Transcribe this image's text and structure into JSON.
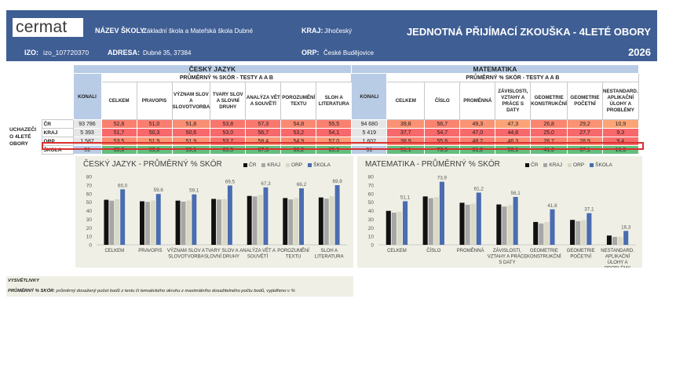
{
  "header": {
    "logo": "cermat",
    "school_label": "NÁZEV ŠKOLY:",
    "school_value": "Základní škola a Mateřská škola Dubné",
    "region_label": "KRAJ:",
    "region_value": "Jihočeský",
    "izo_label": "IZO:",
    "izo_value": "izo_107720370",
    "address_label": "ADRESA:",
    "address_value": "Dubné 35, 37384",
    "orp_label": "ORP:",
    "orp_value": "České Budějovice",
    "title": "JEDNOTNÁ PŘIJÍMACÍ ZKOUŠKA - 4LETÉ OBORY",
    "year": "2026"
  },
  "table": {
    "cj_title": "ČESKÝ JAZYK",
    "ma_title": "MATEMATIKA",
    "sub_title": "PRŮMĚRNÝ % SKÓR - TESTY A A B",
    "konali": "KONALI",
    "group_label": "UCHAZEČI O 4LETÉ OBORY",
    "cj_cols": [
      "CELKEM",
      "PRAVOPIS",
      "VÝZNAM SLOV A SLOVOTVORBA",
      "TVARY SLOV A SLOVNÍ DRUHY",
      "ANALÝZA VĚT A SOUVĚTÍ",
      "POROZUMĚNÍ TEXTU",
      "SLOH A LITERATURA"
    ],
    "ma_cols": [
      "CELKEM",
      "ČÍSLO",
      "PROMĚNNÁ",
      "ZÁVISLOSTI, VZTAHY A PRÁCE S DATY",
      "GEOMETRIE KONSTRUKČNÍ",
      "GEOMETRIE POČETNÍ",
      "NESTANDARD. APLIKAČNÍ ÚLOHY A PROBLÉMY"
    ],
    "rows": [
      {
        "label": "ČR",
        "cj_konali": "93 786",
        "cj": [
          "52,8",
          "51,0",
          "51,8",
          "53,8",
          "57,3",
          "54,8",
          "55,5"
        ],
        "ma_konali": "94 680",
        "ma": [
          "39,8",
          "56,7",
          "49,3",
          "47,3",
          "26,8",
          "29,2",
          "10,9"
        ]
      },
      {
        "label": "KRAJ",
        "cj_konali": "5 393",
        "cj": [
          "51,7",
          "50,3",
          "50,6",
          "53,0",
          "56,7",
          "53,2",
          "54,1"
        ],
        "ma_konali": "5 419",
        "ma": [
          "37,7",
          "54,7",
          "47,0",
          "44,8",
          "25,0",
          "27,7",
          "9,3"
        ]
      },
      {
        "label": "ORP",
        "cj_konali": "1 587",
        "cj": [
          "53,5",
          "51,9",
          "51,9",
          "53,7",
          "58,4",
          "54,9",
          "57,0"
        ],
        "ma_konali": "1 602",
        "ma": [
          "38,9",
          "55,8",
          "48,2",
          "46,3",
          "26,7",
          "28,9",
          "9,4"
        ]
      },
      {
        "label": "ŠKOLA",
        "cj_konali": "31",
        "cj": [
          "65,0",
          "59,6",
          "59,1",
          "69,5",
          "67,3",
          "66,2",
          "69,9"
        ],
        "ma_konali": "31",
        "ma": [
          "51,1",
          "73,9",
          "61,2",
          "56,1",
          "41,6",
          "37,1",
          "16,3"
        ]
      }
    ],
    "colors": {
      "min": "#f8696b",
      "mid": "#ffeb84",
      "max": "#63be7b"
    }
  },
  "chart_data": [
    {
      "type": "bar",
      "title": "ČESKÝ JAZYK - PRŮMĚRNÝ % SKÓR",
      "categories": [
        "CELKEM",
        "PRAVOPIS",
        "VÝZNAM SLOV A SLOVOTVORBA",
        "TVARY SLOV A SLOVNÍ DRUHY",
        "ANALÝZA VĚT A SOUVĚTÍ",
        "POROZUMĚNÍ TEXTU",
        "SLOH A LITERATURA"
      ],
      "series": [
        {
          "name": "ČR",
          "color": "#111111",
          "values": [
            52.8,
            51.0,
            51.8,
            53.8,
            57.3,
            54.8,
            55.5
          ]
        },
        {
          "name": "KRAJ",
          "color": "#a6a6a6",
          "values": [
            51.7,
            50.3,
            50.6,
            53.0,
            56.7,
            53.2,
            54.1
          ]
        },
        {
          "name": "ORP",
          "color": "#d9d9c6",
          "values": [
            53.5,
            51.9,
            51.9,
            53.7,
            58.4,
            54.9,
            57.0
          ]
        },
        {
          "name": "ŠKOLA",
          "color": "#4a6cb0",
          "values": [
            65.0,
            59.6,
            59.1,
            69.5,
            67.3,
            66.2,
            69.9
          ]
        }
      ],
      "data_labels": [
        "65,0",
        "59,6",
        "59,1",
        "69,5",
        "67,3",
        "66,2",
        "69,9"
      ],
      "ylim": [
        0,
        80
      ],
      "yticks": [
        0,
        10,
        20,
        30,
        40,
        50,
        60,
        70,
        80
      ],
      "legend": "top-right"
    },
    {
      "type": "bar",
      "title": "MATEMATIKA - PRŮMĚRNÝ % SKÓR",
      "categories": [
        "CELKEM",
        "ČÍSLO",
        "PROMĚNNÁ",
        "ZÁVISLOSTI, VZTAHY A PRÁCE S DATY",
        "GEOMETRIE KONSTRUKČNÍ",
        "GEOMETRIE POČETNÍ",
        "NESTANDARD. APLIKAČNÍ ÚLOHY A PROBLÉMY"
      ],
      "series": [
        {
          "name": "ČR",
          "color": "#111111",
          "values": [
            39.8,
            56.7,
            49.3,
            47.3,
            26.8,
            29.2,
            10.9
          ]
        },
        {
          "name": "KRAJ",
          "color": "#a6a6a6",
          "values": [
            37.7,
            54.7,
            47.0,
            44.8,
            25.0,
            27.7,
            9.3
          ]
        },
        {
          "name": "ORP",
          "color": "#d9d9c6",
          "values": [
            38.9,
            55.8,
            48.2,
            46.3,
            26.7,
            28.9,
            9.4
          ]
        },
        {
          "name": "ŠKOLA",
          "color": "#4a6cb0",
          "values": [
            51.1,
            73.9,
            61.2,
            56.1,
            41.6,
            37.1,
            16.3
          ]
        }
      ],
      "data_labels": [
        "51,1",
        "73,9",
        "61,2",
        "56,1",
        "41,6",
        "37,1",
        "16,3"
      ],
      "ylim": [
        0,
        80
      ],
      "yticks": [
        0,
        10,
        20,
        30,
        40,
        50,
        60,
        70,
        80
      ],
      "legend": "top-right"
    }
  ],
  "notes": {
    "title": "VYSVĚTLIVKY",
    "text_bold": "PRŮMĚRNÝ % SKÓR",
    "text": ": průměrný dosažený počet bodů z testu či tematického okruhu z maximálního dosažitelného počtu bodů, vyjádřeno v %"
  }
}
